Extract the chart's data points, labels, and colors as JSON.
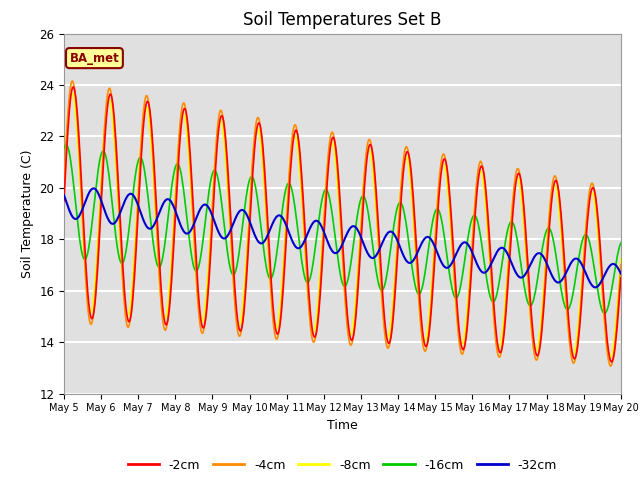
{
  "title": "Soil Temperatures Set B",
  "xlabel": "Time",
  "ylabel": "Soil Temperature (C)",
  "ylim": [
    12,
    26
  ],
  "xlim": [
    0,
    15.0
  ],
  "yticks": [
    12,
    14,
    16,
    18,
    20,
    22,
    24,
    26
  ],
  "xtick_labels": [
    "May 5",
    "May 6",
    "May 7",
    "May 8",
    "May 9",
    "May 10",
    "May 11",
    "May 12",
    "May 13",
    "May 14",
    "May 15",
    "May 16",
    "May 17",
    "May 18",
    "May 19",
    "May 20"
  ],
  "annotation_text": "BA_met",
  "annotation_bg": "#FFFF99",
  "annotation_border": "#8B0000",
  "annotation_text_color": "#8B0000",
  "series_colors": [
    "#FF0000",
    "#FF8C00",
    "#FFFF00",
    "#00CC00",
    "#0000CD"
  ],
  "series_labels": [
    "-2cm",
    "-4cm",
    "-8cm",
    "-16cm",
    "-32cm"
  ],
  "background_color": "#E0E0E0",
  "grid_color": "#FFFFFF",
  "title_fontsize": 12,
  "axis_fontsize": 9,
  "n_points": 720
}
